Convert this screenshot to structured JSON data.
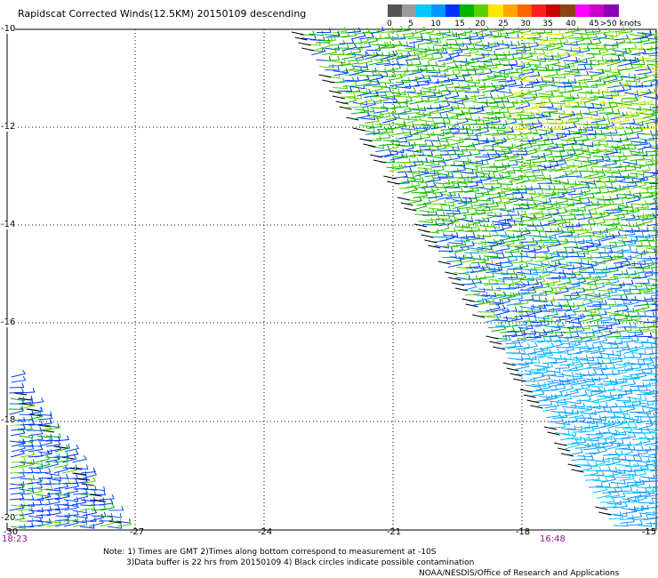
{
  "title": "Rapidscat Corrected Winds(12.5KM) 20150109 descending",
  "legend": {
    "colors": [
      "#555555",
      "#9b9b9b",
      "#00c8ff",
      "#0096ff",
      "#0032ff",
      "#00b400",
      "#5ad200",
      "#ffe600",
      "#ffa500",
      "#ff6400",
      "#ff1e1e",
      "#c80000",
      "#8b4513",
      "#ff00ff",
      "#c800c8",
      "#8c00b4"
    ],
    "labels": [
      "0",
      "5",
      "10",
      "15",
      "20",
      "25",
      "30",
      "35",
      "40",
      "45",
      ">50 knots"
    ]
  },
  "map": {
    "lat_labels": [
      "-10",
      "-12",
      "-14",
      "-16",
      "-18",
      "-20"
    ],
    "lon_labels": [
      "-30",
      "-27",
      "-24",
      "-21",
      "-18",
      "-15"
    ],
    "time_labels": [
      "18:23",
      "16:48"
    ]
  },
  "notes": {
    "line1": "Note: 1) Times are GMT 2)Times along bottom correspond to measurement at -10S",
    "line2": "3)Data buffer is 22 hrs from 20150109 4) Black circles indicate possible contamination",
    "credit": "NOAA/NESDIS/Office of Research and Applications"
  }
}
